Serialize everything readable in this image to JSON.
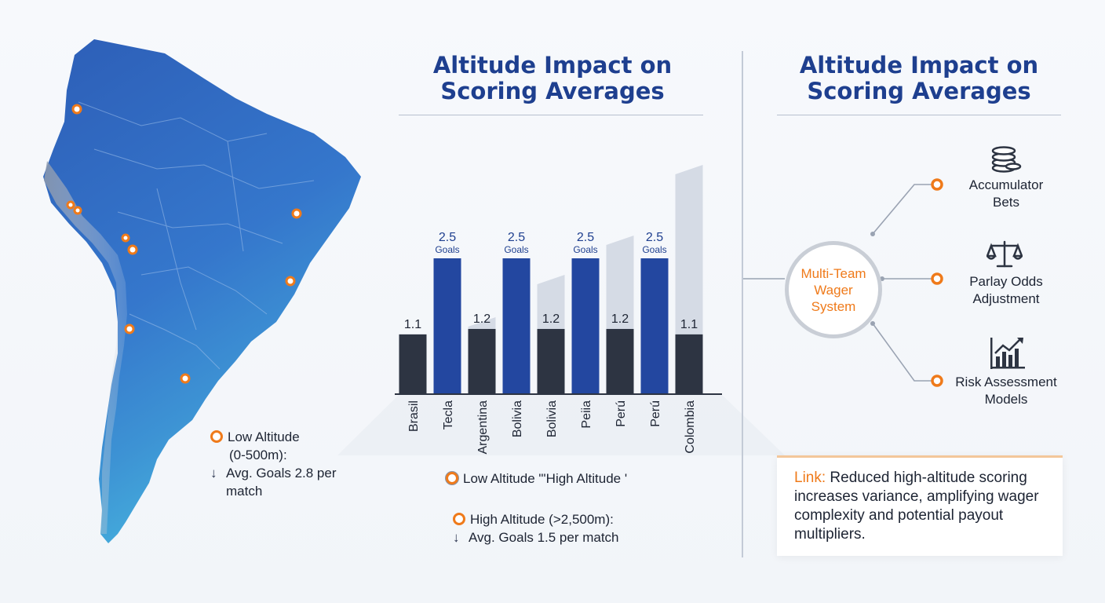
{
  "colors": {
    "title_blue": "#1e3f8f",
    "bar_blue": "#2347a0",
    "bar_dark": "#2d3442",
    "bar_ghost": "#d5dbe5",
    "accent_orange": "#ef7a1a",
    "map_blue": "#2f66c1"
  },
  "map_legend": {
    "title": "Low Altitude",
    "range": "(0-500m):",
    "stat": "Avg. Goals 2.8 per match"
  },
  "chart_data": {
    "type": "bar",
    "title": "Altitude Impact on Scoring Averages",
    "categories": [
      "Brasil",
      "Tecla",
      "Argentina",
      "Bolivia",
      "Bolivia",
      "Peiia",
      "Perú",
      "Perú",
      "Colombia"
    ],
    "series": [
      {
        "values": [
          null,
          2.5,
          null,
          2.5,
          null,
          2.5,
          null,
          2.5,
          null
        ]
      },
      {
        "values": [
          1.1,
          null,
          1.2,
          null,
          1.2,
          null,
          1.2,
          null,
          1.1
        ]
      }
    ],
    "value_labels": [
      "1.1",
      "2.5",
      "1.2",
      "2.5",
      "1.2",
      "2.5",
      "1.2",
      "2.5",
      "1.1"
    ],
    "goals_label": "Goals",
    "legend_text": "Low Altitude \"'High Altitude '",
    "high_legend": {
      "title": "High Altitude (>2,500m):",
      "stat": "Avg. Goals 1.5 per match"
    }
  },
  "diagram": {
    "title": "Altitude Impact on Scoring Averages",
    "hub": "Multi-Team\nWager\nSystem",
    "nodes": [
      {
        "label": "Accumulator\nBets",
        "icon": "coins-icon"
      },
      {
        "label": "Parlay Odds\nAdjustment",
        "icon": "scales-icon"
      },
      {
        "label": "Risk Assessment\nModels",
        "icon": "growth-chart-icon"
      }
    ],
    "note_key": "Link:",
    "note_text": "Reduced high-altitude scoring increases variance, amplifying wager complexity and potential payout multipliers."
  }
}
